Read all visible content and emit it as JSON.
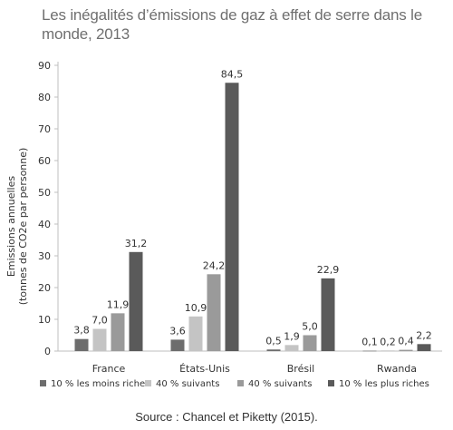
{
  "chart_data": {
    "type": "bar",
    "title": "Les inégalités d’émissions de gaz à effet de serre dans le monde, 2013",
    "ylabel_lines": [
      "Emissions annuelles",
      "(tonnes de CO2e par personne)"
    ],
    "xlabel": "",
    "ylim": [
      0,
      90
    ],
    "yticks": [
      0,
      10,
      20,
      30,
      40,
      50,
      60,
      70,
      80,
      90
    ],
    "grid": false,
    "legend_position": "bottom",
    "categories": [
      "France",
      "États-Unis",
      "Brésil",
      "Rwanda"
    ],
    "series": [
      {
        "name": "10 % les moins riches",
        "color": "#6d6d6d",
        "values": [
          3.8,
          3.6,
          0.5,
          0.1
        ],
        "labels": [
          "3,8",
          "3,6",
          "0,5",
          "0,1"
        ]
      },
      {
        "name": "40 % suivants",
        "color": "#c4c4c4",
        "values": [
          7.0,
          10.9,
          1.9,
          0.2
        ],
        "labels": [
          "7,0",
          "10,9",
          "1,9",
          "0,2"
        ]
      },
      {
        "name": "40 % suivants",
        "color": "#9a9a9a",
        "values": [
          11.9,
          24.2,
          5.0,
          0.4
        ],
        "labels": [
          "11,9",
          "24,2",
          "5,0",
          "0,4"
        ]
      },
      {
        "name": "10 % les plus riches",
        "color": "#5a5a5a",
        "values": [
          31.2,
          84.5,
          22.9,
          2.2
        ],
        "labels": [
          "31,2",
          "84,5",
          "22,9",
          "2,2"
        ]
      }
    ],
    "source": "Source : Chancel et Piketty (2015)."
  }
}
